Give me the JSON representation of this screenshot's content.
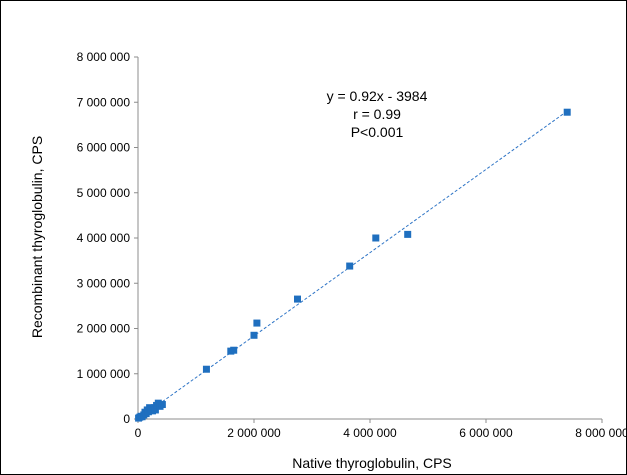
{
  "chart_data": {
    "type": "scatter",
    "xlabel": "Native thyroglobulin, CPS",
    "ylabel": "Recombinant thyroglobulin, CPS",
    "xlim": [
      0,
      8000000
    ],
    "ylim": [
      0,
      8000000
    ],
    "x_ticks": [
      0,
      2000000,
      4000000,
      6000000,
      8000000
    ],
    "x_tick_labels": [
      "0",
      "2 000 000",
      "4 000 000",
      "6 000 000",
      "8 000 000"
    ],
    "y_ticks": [
      0,
      1000000,
      2000000,
      3000000,
      4000000,
      5000000,
      6000000,
      7000000,
      8000000
    ],
    "y_tick_labels": [
      "0",
      "1 000 000",
      "2 000 000",
      "3 000 000",
      "4 000 000",
      "5 000 000",
      "6 000 000",
      "7 000 000",
      "8 000 000"
    ],
    "grid": false,
    "marker_color": "#1f6fbf",
    "trendline": {
      "slope": 0.92,
      "intercept": -3984,
      "style": "dashed",
      "color": "#2f75c6",
      "x_range": [
        0,
        7400000
      ]
    },
    "annotations": [
      "y = 0.92x - 3984",
      "r = 0.99",
      "P<0.001"
    ],
    "series": [
      {
        "x": [
          10000,
          30000,
          50000,
          70000,
          100000,
          120000,
          140000,
          160000,
          180000,
          200000,
          220000,
          250000,
          280000,
          300000,
          320000,
          350000,
          380000,
          420000,
          1180000,
          1600000,
          1650000,
          2000000,
          2050000,
          2750000,
          3650000,
          4100000,
          4650000,
          7400000
        ],
        "y": [
          20000,
          40000,
          60000,
          50000,
          90000,
          150000,
          120000,
          200000,
          160000,
          250000,
          220000,
          180000,
          250000,
          200000,
          300000,
          350000,
          280000,
          320000,
          1100000,
          1500000,
          1520000,
          1850000,
          2120000,
          2650000,
          3380000,
          4000000,
          4080000,
          6780000
        ]
      }
    ]
  }
}
